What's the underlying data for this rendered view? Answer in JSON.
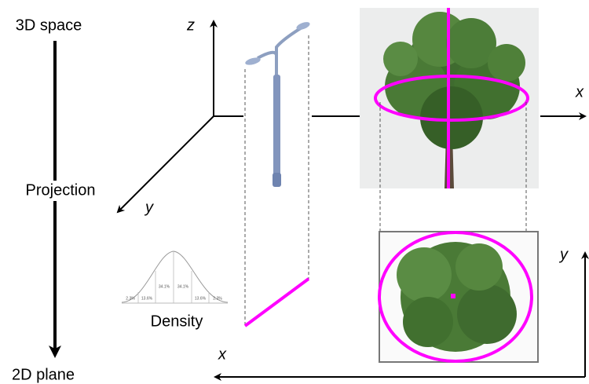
{
  "labels": {
    "top": "3D space",
    "middle": "Projection",
    "bottom": "2D plane"
  },
  "axes_3d": {
    "z": "z",
    "y": "y",
    "x": "x"
  },
  "axes_2d": {
    "y": "y",
    "x": "x"
  },
  "density": {
    "label": "Density",
    "percentages": [
      "2.3%",
      "13.6%",
      "34.1%",
      "34.1%",
      "13.6%",
      "2.3%"
    ]
  }
}
